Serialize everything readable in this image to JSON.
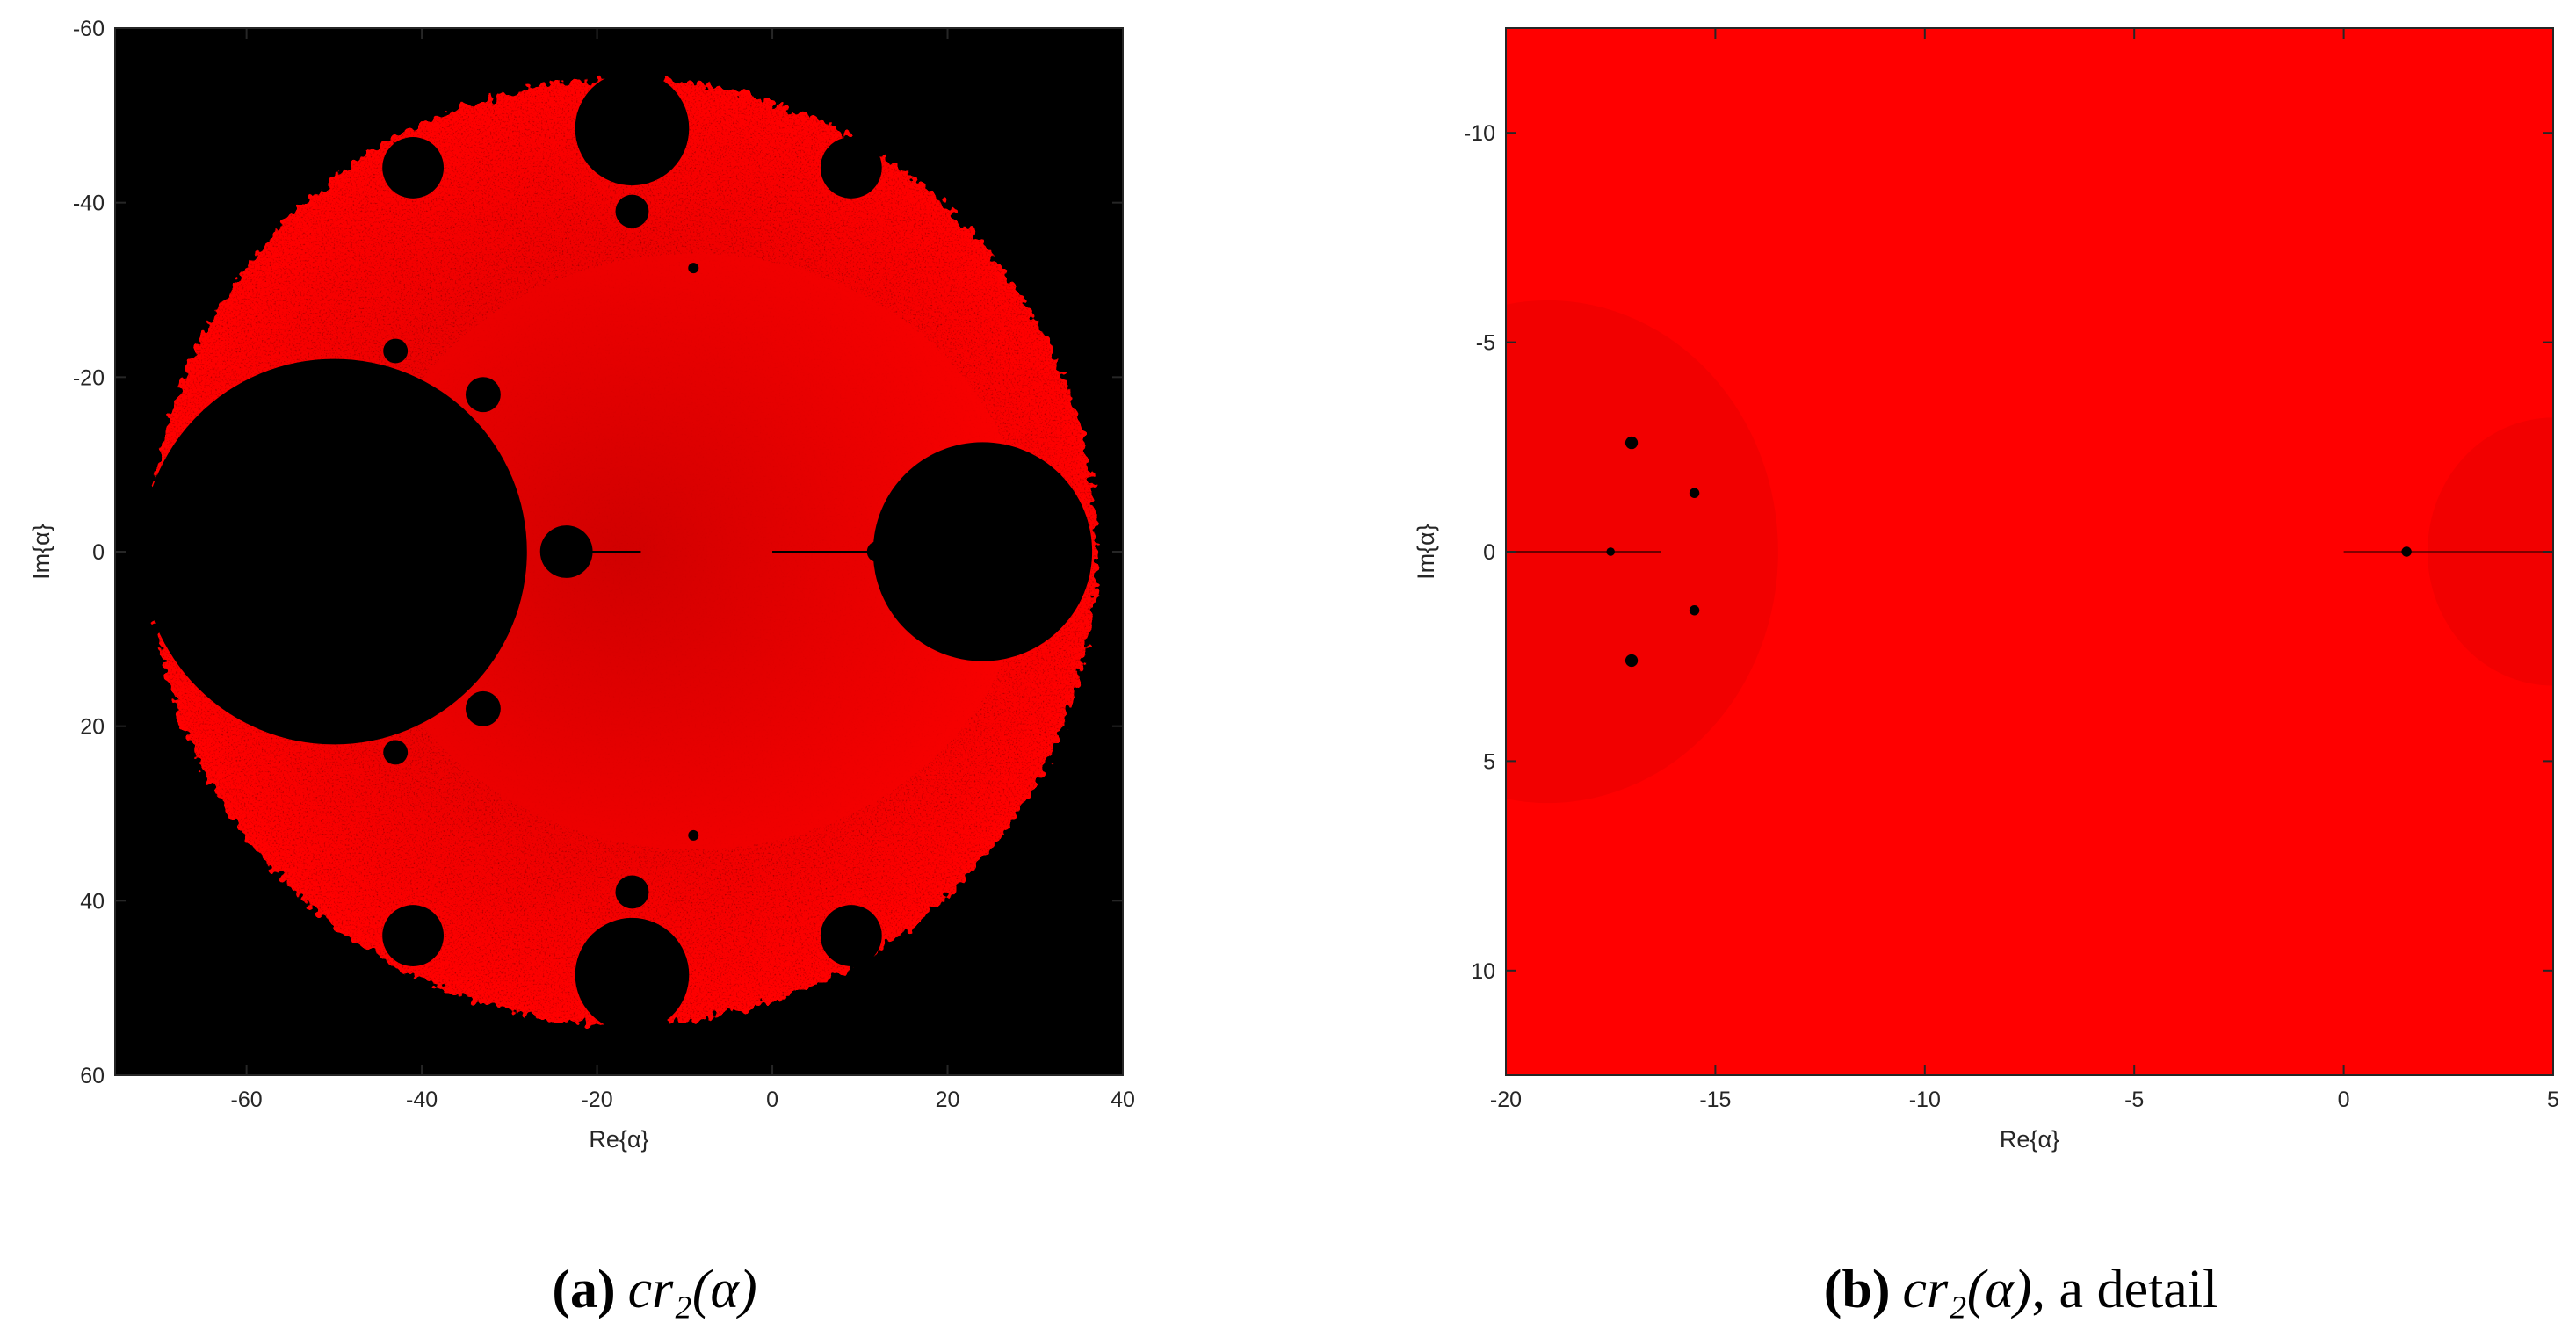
{
  "colors": {
    "fractal": "#ff0000",
    "background": "#000000",
    "axis": "#262626"
  },
  "chart_data": [
    {
      "type": "heatmap",
      "panel": "a",
      "xlabel": "Re{α}",
      "ylabel": "Im{α}",
      "xlim": [
        -75,
        40
      ],
      "ylim": [
        -60,
        60
      ],
      "y_axis_direction": "reversed",
      "xticks": [
        -60,
        -40,
        -20,
        0,
        20,
        40
      ],
      "yticks": [
        -60,
        -40,
        -20,
        0,
        20,
        40,
        60
      ],
      "colormap": [
        "#000000",
        "#ff0000"
      ],
      "caption_tag": "(a)",
      "caption_math": "cr₂(α)",
      "caption_suffix": "",
      "features": {
        "outer_disk": {
          "center": [
            -17,
            0
          ],
          "radius": 54
        },
        "large_black_disk": {
          "center": [
            -50,
            0
          ],
          "radius": 22
        },
        "right_black_disk": {
          "center": [
            24,
            0
          ],
          "radius": 12.5
        },
        "cardioid_bulbs": [
          {
            "center": [
              -23.5,
              0
            ],
            "radius": 3
          },
          {
            "center": [
              -33,
              -18
            ],
            "radius": 2
          },
          {
            "center": [
              -33,
              18
            ],
            "radius": 2
          },
          {
            "center": [
              -43,
              -23
            ],
            "radius": 1.4
          },
          {
            "center": [
              -43,
              23
            ],
            "radius": 1.4
          },
          {
            "center": [
              -16,
              -48.5
            ],
            "radius": 6.5
          },
          {
            "center": [
              -16,
              48.5
            ],
            "radius": 6.5
          },
          {
            "center": [
              -41,
              -44
            ],
            "radius": 3.5
          },
          {
            "center": [
              -41,
              44
            ],
            "radius": 3.5
          },
          {
            "center": [
              9,
              -44
            ],
            "radius": 3.5
          },
          {
            "center": [
              9,
              44
            ],
            "radius": 3.5
          },
          {
            "center": [
              -16,
              -39
            ],
            "radius": 1.9
          },
          {
            "center": [
              -16,
              39
            ],
            "radius": 1.9
          }
        ]
      }
    },
    {
      "type": "heatmap",
      "panel": "b",
      "xlabel": "Re{α}",
      "ylabel": "Im{α}",
      "xlim": [
        -20,
        5
      ],
      "ylim": [
        -12.5,
        12.5
      ],
      "y_axis_direction": "reversed",
      "xticks": [
        -20,
        -15,
        -10,
        -5,
        0,
        5
      ],
      "yticks": [
        -10,
        -5,
        0,
        5,
        10
      ],
      "colormap": [
        "#000000",
        "#ff0000"
      ],
      "caption_tag": "(b)",
      "caption_math": "cr₂(α)",
      "caption_suffix": ", a detail",
      "features": {
        "small_black_spots": [
          {
            "center": [
              -17.5,
              0
            ],
            "radius": 0.1
          },
          {
            "center": [
              -17,
              -2.6
            ],
            "radius": 0.15
          },
          {
            "center": [
              -17,
              2.6
            ],
            "radius": 0.15
          },
          {
            "center": [
              -15.5,
              -1.4
            ],
            "radius": 0.12
          },
          {
            "center": [
              -15.5,
              1.4
            ],
            "radius": 0.12
          },
          {
            "center": [
              1.5,
              0
            ],
            "radius": 0.12
          }
        ]
      }
    }
  ]
}
